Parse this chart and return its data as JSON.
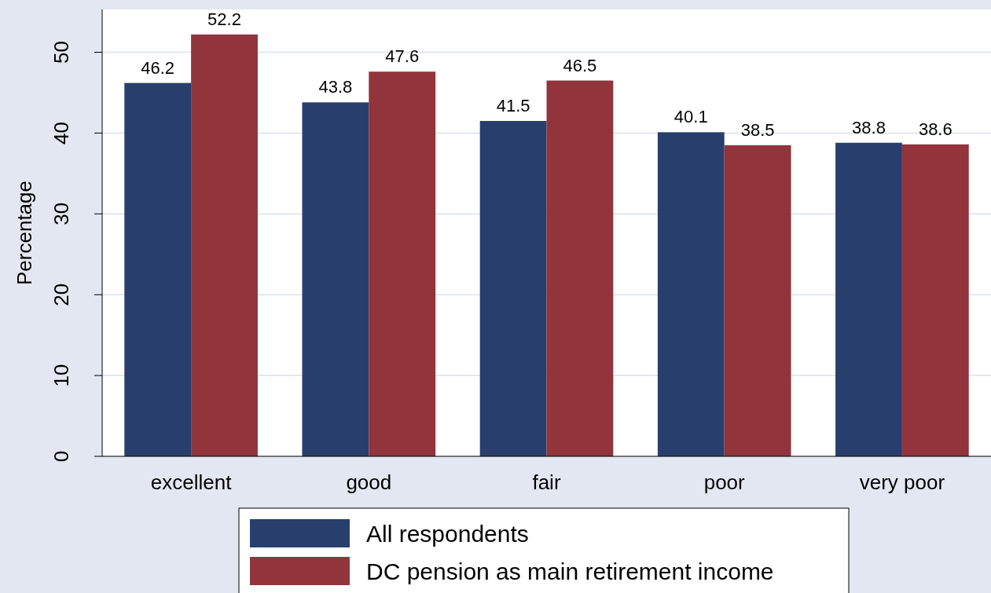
{
  "chart_data": {
    "type": "bar",
    "ylabel": "Percentage",
    "categories": [
      "excellent",
      "good",
      "fair",
      "poor",
      "very poor"
    ],
    "series": [
      {
        "name": "All respondents",
        "color": "#283f6e",
        "values": [
          46.2,
          43.8,
          41.5,
          40.1,
          38.8
        ]
      },
      {
        "name": "DC pension as main retirement income",
        "color": "#91343c",
        "values": [
          52.2,
          47.6,
          46.5,
          38.5,
          38.6
        ]
      }
    ],
    "ylim": [
      0,
      55.3
    ],
    "yticks": [
      0,
      10,
      20,
      30,
      40,
      50
    ],
    "grid": "y",
    "legend": "bottom",
    "data_labels": true
  }
}
